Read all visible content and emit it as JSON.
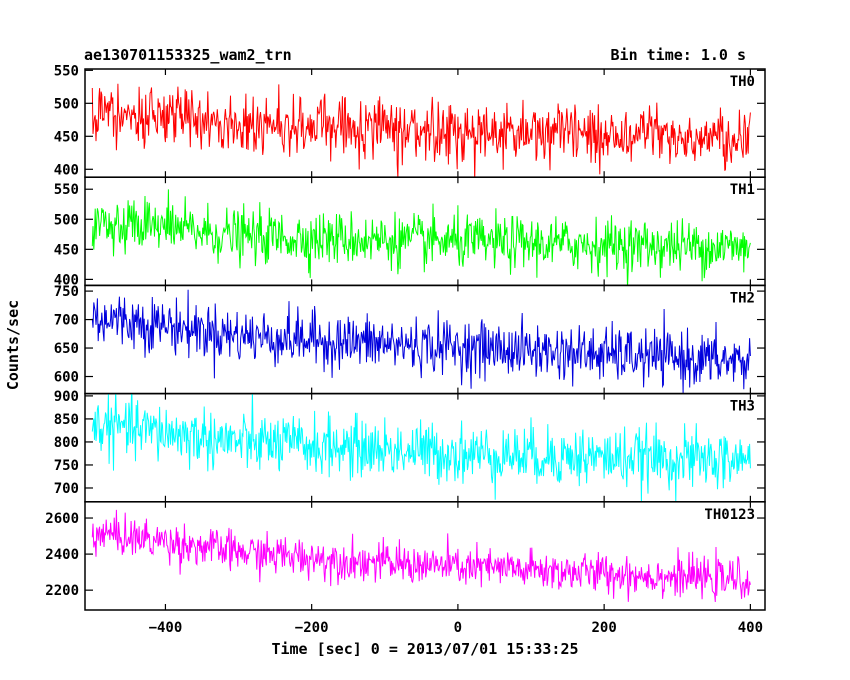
{
  "chart_data": {
    "type": "line",
    "title": "ae130701153325_wam2_trn",
    "subtitle": "Bin time: 1.0 s",
    "xlabel": "Time [sec] 0 = 2013/07/01 15:33:25",
    "ylabel": "Counts/sec",
    "xlim": [
      -510,
      420
    ],
    "data_x_range": [
      -500,
      400
    ],
    "x_ticks": [
      -400,
      -200,
      0,
      200,
      400
    ],
    "x_ticklabels": [
      "−400",
      "−200",
      "0",
      "200",
      "400"
    ],
    "panels": [
      {
        "name": "TH0",
        "color": "#ff0000",
        "ylim": [
          388,
          552
        ],
        "yticks": [
          400,
          450,
          500,
          550
        ],
        "ytick_labels": [
          "400",
          "450",
          "500",
          "550"
        ],
        "trend": {
          "x": [
            -500,
            -400,
            -300,
            0,
            400
          ],
          "y": [
            482,
            480,
            470,
            458,
            447
          ]
        },
        "noise_std": 22
      },
      {
        "name": "TH1",
        "color": "#00ff00",
        "ylim": [
          390,
          570
        ],
        "yticks": [
          400,
          450,
          500,
          550
        ],
        "ytick_labels": [
          "400",
          "450",
          "500",
          "550"
        ],
        "trend": {
          "x": [
            -500,
            -400,
            -300,
            0,
            400
          ],
          "y": [
            492,
            485,
            472,
            462,
            453
          ]
        },
        "noise_std": 22
      },
      {
        "name": "TH2",
        "color": "#0000dd",
        "ylim": [
          570,
          760
        ],
        "yticks": [
          600,
          650,
          700,
          750
        ],
        "ytick_labels": [
          "600",
          "650",
          "700",
          "750"
        ],
        "trend": {
          "x": [
            -500,
            -400,
            -300,
            -100,
            0,
            400
          ],
          "y": [
            705,
            690,
            672,
            657,
            652,
            625
          ]
        },
        "noise_std": 24
      },
      {
        "name": "TH3",
        "color": "#00ffff",
        "ylim": [
          670,
          905
        ],
        "yticks": [
          700,
          750,
          800,
          850,
          900
        ],
        "ytick_labels": [
          "700",
          "750",
          "800",
          "850",
          "900"
        ],
        "trend": {
          "x": [
            -500,
            -400,
            -300,
            0,
            400
          ],
          "y": [
            838,
            820,
            800,
            775,
            758
          ]
        },
        "noise_std": 32
      },
      {
        "name": "TH0123",
        "color": "#ff00ff",
        "ylim": [
          2090,
          2690
        ],
        "yticks": [
          2200,
          2400,
          2600
        ],
        "ytick_labels": [
          "2200",
          "2400",
          "2600"
        ],
        "trend": {
          "x": [
            -500,
            -400,
            -300,
            -100,
            0,
            400
          ],
          "y": [
            2520,
            2470,
            2410,
            2350,
            2330,
            2255
          ]
        },
        "noise_std": 55
      }
    ],
    "grid": false,
    "legend": "panel labels top-right"
  }
}
